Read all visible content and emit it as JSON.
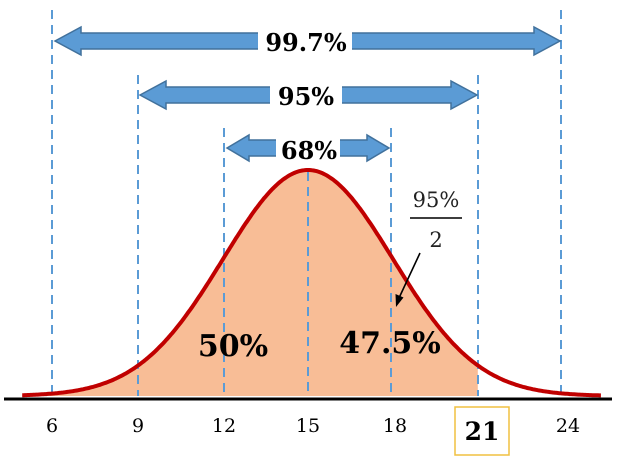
{
  "ranges": [
    {
      "label": "99.7%",
      "from": 6,
      "to": 24
    },
    {
      "label": "95%",
      "from": 9,
      "to": 21
    },
    {
      "label": "68%",
      "from": 12,
      "to": 18
    }
  ],
  "axis": {
    "ticks": [
      "6",
      "9",
      "12",
      "15",
      "18",
      "21",
      "24"
    ],
    "highlighted_tick": "21"
  },
  "distribution": {
    "mean": 15,
    "sd": 3,
    "shaded_from": 15,
    "shaded_to": 21
  },
  "areas": {
    "left": "50%",
    "right": "47.5%"
  },
  "fraction": {
    "numerator": "95%",
    "denominator": "2"
  },
  "colors": {
    "curve": "#c00000",
    "fill": "#f8bd96",
    "arrow": "#5b9bd5",
    "arrow_border": "#41719c",
    "guide": "#5b9bd5",
    "highlight_box": "#f0c040"
  }
}
